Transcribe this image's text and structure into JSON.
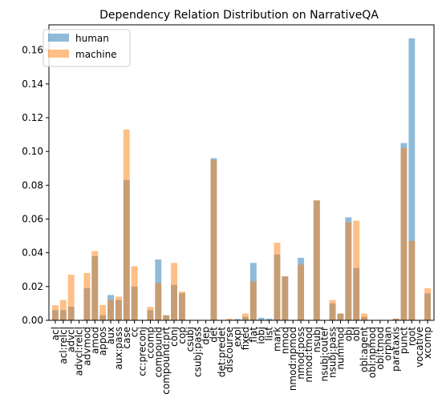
{
  "chart_data": {
    "type": "bar",
    "title": "Dependency Relation Distribution on NarrativeQA",
    "xlabel": "",
    "ylabel": "",
    "ylim": [
      0,
      0.175
    ],
    "yticks": [
      0.0,
      0.02,
      0.04,
      0.06,
      0.08,
      0.1,
      0.12,
      0.14,
      0.16
    ],
    "ytick_labels": [
      "0.00",
      "0.02",
      "0.04",
      "0.06",
      "0.08",
      "0.10",
      "0.12",
      "0.14",
      "0.16"
    ],
    "legend_position": "top-left",
    "grid": false,
    "categories": [
      "acl",
      "acl:relcl",
      "advcl",
      "advcl:relcl",
      "advmod",
      "amod",
      "appos",
      "aux",
      "aux:pass",
      "case",
      "cc",
      "cc:preconj",
      "ccomp",
      "compound",
      "compound:prt",
      "conj",
      "cop",
      "csubj",
      "csubj:pass",
      "dep",
      "det",
      "det:predet",
      "discourse",
      "expl",
      "fixed",
      "flat",
      "iobj",
      "list",
      "mark",
      "nmod",
      "nmod:npmod",
      "nmod:poss",
      "nmod:tmod",
      "nsubj",
      "nsubj:outer",
      "nsubj:pass",
      "nummod",
      "obj",
      "obl",
      "obl:agent",
      "obl:npmod",
      "obl:tmod",
      "orphan",
      "parataxis",
      "punct",
      "root",
      "vocative",
      "xcomp"
    ],
    "series": [
      {
        "name": "human",
        "color": "#1f77b4",
        "values": [
          0.006,
          0.006,
          0.008,
          0.0,
          0.019,
          0.038,
          0.003,
          0.015,
          0.012,
          0.083,
          0.02,
          0.0,
          0.006,
          0.036,
          0.003,
          0.021,
          0.016,
          0.0,
          0.0,
          0.0,
          0.096,
          0.0,
          0.0,
          0.0008,
          0.002,
          0.034,
          0.0015,
          0.001,
          0.039,
          0.026,
          0.0,
          0.037,
          0.0,
          0.071,
          0.0,
          0.01,
          0.004,
          0.061,
          0.031,
          0.002,
          0.0,
          0.0,
          0.0,
          0.001,
          0.105,
          0.167,
          0.0,
          0.016
        ]
      },
      {
        "name": "machine",
        "color": "#ff7f0e",
        "values": [
          0.009,
          0.012,
          0.027,
          0.0,
          0.028,
          0.041,
          0.009,
          0.012,
          0.014,
          0.113,
          0.032,
          0.0,
          0.008,
          0.022,
          0.003,
          0.034,
          0.017,
          0.0,
          0.0,
          0.0,
          0.095,
          0.0,
          0.001,
          0.0,
          0.004,
          0.023,
          0.0,
          0.0,
          0.046,
          0.026,
          0.0,
          0.033,
          0.0,
          0.071,
          0.0,
          0.012,
          0.004,
          0.058,
          0.059,
          0.004,
          0.0,
          0.0,
          0.0,
          0.001,
          0.102,
          0.047,
          0.0,
          0.019
        ]
      }
    ]
  }
}
